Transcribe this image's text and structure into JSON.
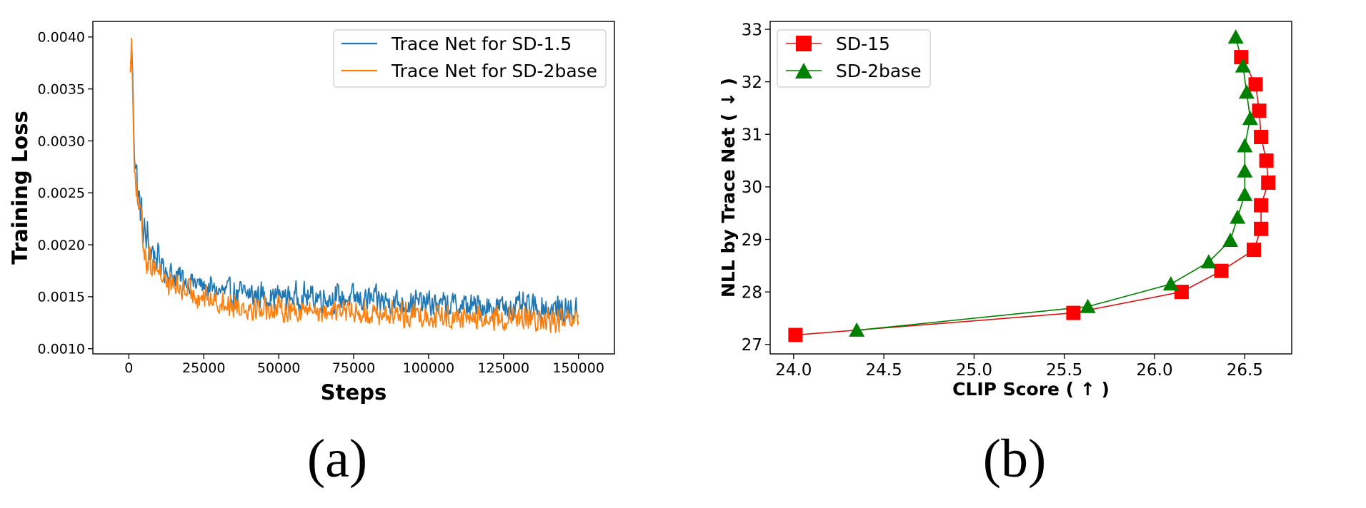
{
  "chart_data": [
    {
      "id": "a",
      "type": "line",
      "caption": "(a)",
      "title": "",
      "xlabel": "Steps",
      "ylabel": "Training Loss",
      "xlim": [
        -12000,
        162000
      ],
      "ylim": [
        0.00095,
        0.00415
      ],
      "xticks": [
        0,
        25000,
        50000,
        75000,
        100000,
        125000,
        150000
      ],
      "xtick_labels": [
        "0",
        "25000",
        "50000",
        "75000",
        "100000",
        "125000",
        "150000"
      ],
      "yticks": [
        0.001,
        0.0015,
        0.002,
        0.0025,
        0.003,
        0.0035,
        0.004
      ],
      "ytick_labels": [
        "0.0010",
        "0.0015",
        "0.0020",
        "0.0025",
        "0.0030",
        "0.0035",
        "0.0040"
      ],
      "grid": false,
      "legend_position": "top-right",
      "series": [
        {
          "name": "Trace Net for SD-1.5",
          "color": "#1f77b4",
          "x": [
            500,
            1000,
            1500,
            2000,
            2500,
            3000,
            4000,
            5000,
            6000,
            7500,
            10000,
            12500,
            15000,
            20000,
            25000,
            30000,
            40000,
            50000,
            60000,
            75000,
            90000,
            100000,
            110000,
            125000,
            140000,
            150000
          ],
          "y": [
            0.0037,
            0.00395,
            0.0033,
            0.0029,
            0.0027,
            0.0025,
            0.0023,
            0.0021,
            0.00205,
            0.00195,
            0.00185,
            0.00175,
            0.0017,
            0.00165,
            0.0016,
            0.00155,
            0.00152,
            0.0015,
            0.0015,
            0.00148,
            0.00145,
            0.00143,
            0.00141,
            0.0014,
            0.00139,
            0.00135
          ],
          "noise": 0.00011
        },
        {
          "name": "Trace Net for SD-2base",
          "color": "#ff7f0e",
          "x": [
            500,
            1000,
            1500,
            2000,
            2500,
            3000,
            4000,
            5000,
            6000,
            7500,
            10000,
            12500,
            15000,
            20000,
            25000,
            30000,
            40000,
            50000,
            60000,
            75000,
            90000,
            100000,
            110000,
            125000,
            140000,
            150000
          ],
          "y": [
            0.0038,
            0.0039,
            0.0032,
            0.0028,
            0.0026,
            0.0024,
            0.0022,
            0.002,
            0.0019,
            0.00185,
            0.00175,
            0.00165,
            0.0016,
            0.00155,
            0.0015,
            0.00145,
            0.0014,
            0.00138,
            0.00137,
            0.00135,
            0.00133,
            0.00132,
            0.0013,
            0.00128,
            0.00127,
            0.00125
          ],
          "noise": 0.0001
        }
      ]
    },
    {
      "id": "b",
      "type": "line",
      "caption": "(b)",
      "title": "",
      "xlabel": "CLIP Score ( ↑ )",
      "ylabel": "NLL by Trace Net ( ↓ )",
      "xlim": [
        23.87,
        26.76
      ],
      "ylim": [
        26.82,
        33.15
      ],
      "xticks": [
        24.0,
        24.5,
        25.0,
        25.5,
        26.0,
        26.5
      ],
      "xtick_labels": [
        "24.0",
        "24.5",
        "25.0",
        "25.5",
        "26.0",
        "26.5"
      ],
      "yticks": [
        27,
        28,
        29,
        30,
        31,
        32,
        33
      ],
      "ytick_labels": [
        "27",
        "28",
        "29",
        "30",
        "31",
        "32",
        "33"
      ],
      "grid": false,
      "legend_position": "top-left",
      "series": [
        {
          "name": "SD-15",
          "color": "#ff0000",
          "line_color": "#dd1111",
          "marker": "square",
          "x": [
            24.01,
            25.55,
            26.15,
            26.37,
            26.55,
            26.59,
            26.59,
            26.63,
            26.62,
            26.59,
            26.58,
            26.56,
            26.48
          ],
          "y": [
            27.18,
            27.6,
            28.0,
            28.4,
            28.8,
            29.2,
            29.65,
            30.08,
            30.5,
            30.95,
            31.45,
            31.95,
            32.47
          ]
        },
        {
          "name": "SD-2base",
          "color": "#008000",
          "line_color": "#008000",
          "marker": "triangle",
          "x": [
            24.35,
            25.63,
            26.09,
            26.3,
            26.42,
            26.46,
            26.5,
            26.5,
            26.5,
            26.53,
            26.51,
            26.49,
            26.45
          ],
          "y": [
            27.27,
            27.72,
            28.15,
            28.57,
            28.98,
            29.42,
            29.85,
            30.3,
            30.78,
            31.3,
            31.8,
            32.3,
            32.85
          ]
        }
      ]
    }
  ]
}
